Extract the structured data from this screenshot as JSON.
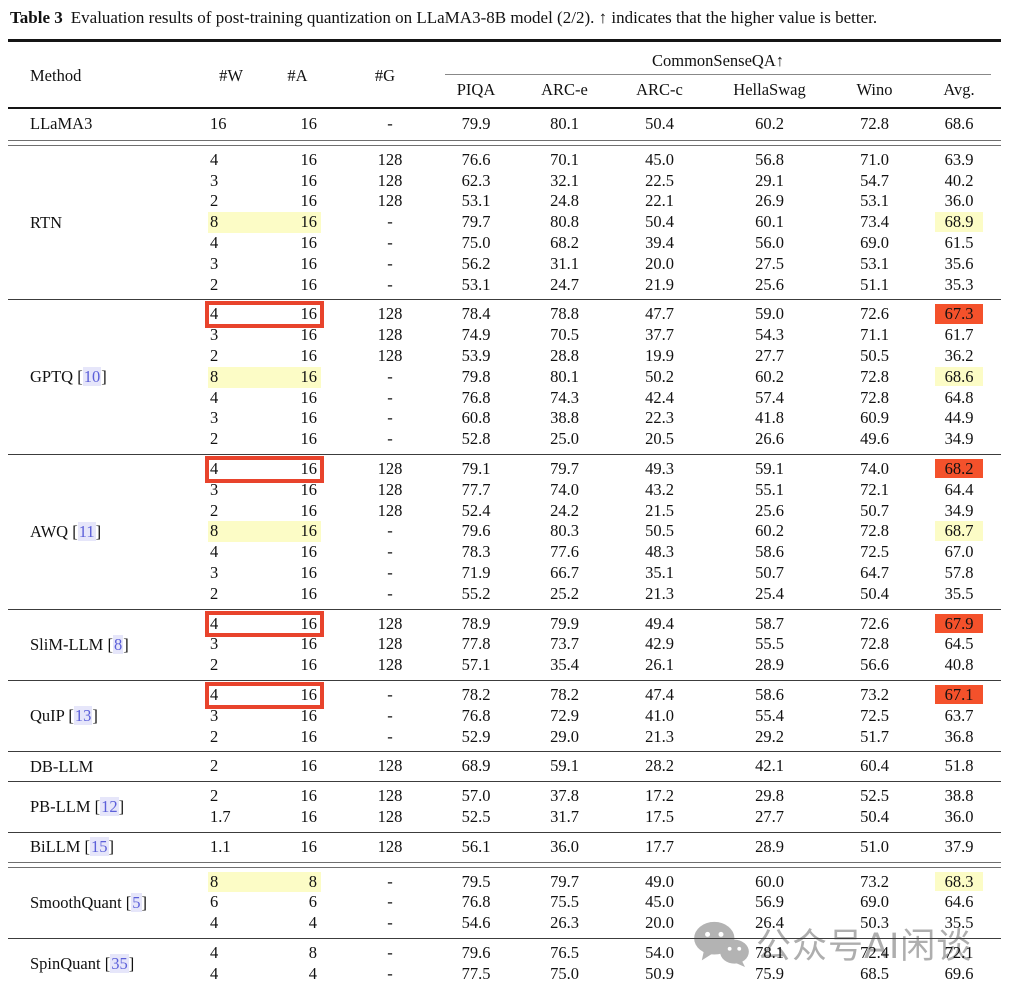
{
  "caption": {
    "label": "Table 3",
    "text": "Evaluation results of post-training quantization on LLaMA3-8B model (2/2). ↑ indicates that the higher value is better."
  },
  "header": {
    "method": "Method",
    "bit_cols": [
      "#W",
      "#A",
      "#G"
    ],
    "group_title": "CommonSenseQA↑",
    "metric_cols": [
      "PIQA",
      "ARC-e",
      "ARC-c",
      "HellaSwag",
      "Wino",
      "Avg."
    ]
  },
  "baseline": {
    "method": "LLaMA3",
    "cite": "",
    "rows": [
      {
        "w": "16",
        "a": "16",
        "g": "-",
        "vals": [
          "79.9",
          "80.1",
          "50.4",
          "60.2",
          "72.8",
          "68.6"
        ],
        "wa": "",
        "avg": ""
      }
    ]
  },
  "groups": [
    {
      "method": "RTN",
      "cite": "",
      "rule_above": "double",
      "rows": [
        {
          "w": "4",
          "a": "16",
          "g": "128",
          "vals": [
            "76.6",
            "70.1",
            "45.0",
            "56.8",
            "71.0",
            "63.9"
          ],
          "wa": "",
          "avg": ""
        },
        {
          "w": "3",
          "a": "16",
          "g": "128",
          "vals": [
            "62.3",
            "32.1",
            "22.5",
            "29.1",
            "54.7",
            "40.2"
          ],
          "wa": "",
          "avg": ""
        },
        {
          "w": "2",
          "a": "16",
          "g": "128",
          "vals": [
            "53.1",
            "24.8",
            "22.1",
            "26.9",
            "53.1",
            "36.0"
          ],
          "wa": "",
          "avg": ""
        },
        {
          "w": "8",
          "a": "16",
          "g": "-",
          "vals": [
            "79.7",
            "80.8",
            "50.4",
            "60.1",
            "73.4",
            "68.9"
          ],
          "wa": "yellow",
          "avg": "yellow"
        },
        {
          "w": "4",
          "a": "16",
          "g": "-",
          "vals": [
            "75.0",
            "68.2",
            "39.4",
            "56.0",
            "69.0",
            "61.5"
          ],
          "wa": "",
          "avg": ""
        },
        {
          "w": "3",
          "a": "16",
          "g": "-",
          "vals": [
            "56.2",
            "31.1",
            "20.0",
            "27.5",
            "53.1",
            "35.6"
          ],
          "wa": "",
          "avg": ""
        },
        {
          "w": "2",
          "a": "16",
          "g": "-",
          "vals": [
            "53.1",
            "24.7",
            "21.9",
            "25.6",
            "51.1",
            "35.3"
          ],
          "wa": "",
          "avg": ""
        }
      ]
    },
    {
      "method": "GPTQ",
      "cite": "10",
      "rule_above": "single",
      "rows": [
        {
          "w": "4",
          "a": "16",
          "g": "128",
          "vals": [
            "78.4",
            "78.8",
            "47.7",
            "59.0",
            "72.6",
            "67.3"
          ],
          "wa": "box",
          "avg": "orange"
        },
        {
          "w": "3",
          "a": "16",
          "g": "128",
          "vals": [
            "74.9",
            "70.5",
            "37.7",
            "54.3",
            "71.1",
            "61.7"
          ],
          "wa": "",
          "avg": ""
        },
        {
          "w": "2",
          "a": "16",
          "g": "128",
          "vals": [
            "53.9",
            "28.8",
            "19.9",
            "27.7",
            "50.5",
            "36.2"
          ],
          "wa": "",
          "avg": ""
        },
        {
          "w": "8",
          "a": "16",
          "g": "-",
          "vals": [
            "79.8",
            "80.1",
            "50.2",
            "60.2",
            "72.8",
            "68.6"
          ],
          "wa": "yellow",
          "avg": "yellow"
        },
        {
          "w": "4",
          "a": "16",
          "g": "-",
          "vals": [
            "76.8",
            "74.3",
            "42.4",
            "57.4",
            "72.8",
            "64.8"
          ],
          "wa": "",
          "avg": ""
        },
        {
          "w": "3",
          "a": "16",
          "g": "-",
          "vals": [
            "60.8",
            "38.8",
            "22.3",
            "41.8",
            "60.9",
            "44.9"
          ],
          "wa": "",
          "avg": ""
        },
        {
          "w": "2",
          "a": "16",
          "g": "-",
          "vals": [
            "52.8",
            "25.0",
            "20.5",
            "26.6",
            "49.6",
            "34.9"
          ],
          "wa": "",
          "avg": ""
        }
      ]
    },
    {
      "method": "AWQ",
      "cite": "11",
      "rule_above": "single",
      "rows": [
        {
          "w": "4",
          "a": "16",
          "g": "128",
          "vals": [
            "79.1",
            "79.7",
            "49.3",
            "59.1",
            "74.0",
            "68.2"
          ],
          "wa": "box",
          "avg": "orange"
        },
        {
          "w": "3",
          "a": "16",
          "g": "128",
          "vals": [
            "77.7",
            "74.0",
            "43.2",
            "55.1",
            "72.1",
            "64.4"
          ],
          "wa": "",
          "avg": ""
        },
        {
          "w": "2",
          "a": "16",
          "g": "128",
          "vals": [
            "52.4",
            "24.2",
            "21.5",
            "25.6",
            "50.7",
            "34.9"
          ],
          "wa": "",
          "avg": ""
        },
        {
          "w": "8",
          "a": "16",
          "g": "-",
          "vals": [
            "79.6",
            "80.3",
            "50.5",
            "60.2",
            "72.8",
            "68.7"
          ],
          "wa": "yellow",
          "avg": "yellow"
        },
        {
          "w": "4",
          "a": "16",
          "g": "-",
          "vals": [
            "78.3",
            "77.6",
            "48.3",
            "58.6",
            "72.5",
            "67.0"
          ],
          "wa": "",
          "avg": ""
        },
        {
          "w": "3",
          "a": "16",
          "g": "-",
          "vals": [
            "71.9",
            "66.7",
            "35.1",
            "50.7",
            "64.7",
            "57.8"
          ],
          "wa": "",
          "avg": ""
        },
        {
          "w": "2",
          "a": "16",
          "g": "-",
          "vals": [
            "55.2",
            "25.2",
            "21.3",
            "25.4",
            "50.4",
            "35.5"
          ],
          "wa": "",
          "avg": ""
        }
      ]
    },
    {
      "method": "SliM-LLM",
      "cite": "8",
      "rule_above": "single",
      "rows": [
        {
          "w": "4",
          "a": "16",
          "g": "128",
          "vals": [
            "78.9",
            "79.9",
            "49.4",
            "58.7",
            "72.6",
            "67.9"
          ],
          "wa": "box",
          "avg": "orange"
        },
        {
          "w": "3",
          "a": "16",
          "g": "128",
          "vals": [
            "77.8",
            "73.7",
            "42.9",
            "55.5",
            "72.8",
            "64.5"
          ],
          "wa": "",
          "avg": ""
        },
        {
          "w": "2",
          "a": "16",
          "g": "128",
          "vals": [
            "57.1",
            "35.4",
            "26.1",
            "28.9",
            "56.6",
            "40.8"
          ],
          "wa": "",
          "avg": ""
        }
      ]
    },
    {
      "method": "QuIP",
      "cite": "13",
      "rule_above": "single",
      "rows": [
        {
          "w": "4",
          "a": "16",
          "g": "-",
          "vals": [
            "78.2",
            "78.2",
            "47.4",
            "58.6",
            "73.2",
            "67.1"
          ],
          "wa": "box",
          "avg": "orange"
        },
        {
          "w": "3",
          "a": "16",
          "g": "-",
          "vals": [
            "76.8",
            "72.9",
            "41.0",
            "55.4",
            "72.5",
            "63.7"
          ],
          "wa": "",
          "avg": ""
        },
        {
          "w": "2",
          "a": "16",
          "g": "-",
          "vals": [
            "52.9",
            "29.0",
            "21.3",
            "29.2",
            "51.7",
            "36.8"
          ],
          "wa": "",
          "avg": ""
        }
      ]
    },
    {
      "method": "DB-LLM",
      "cite": "",
      "rule_above": "single",
      "rows": [
        {
          "w": "2",
          "a": "16",
          "g": "128",
          "vals": [
            "68.9",
            "59.1",
            "28.2",
            "42.1",
            "60.4",
            "51.8"
          ],
          "wa": "",
          "avg": ""
        }
      ]
    },
    {
      "method": "PB-LLM",
      "cite": "12",
      "rule_above": "single",
      "rows": [
        {
          "w": "2",
          "a": "16",
          "g": "128",
          "vals": [
            "57.0",
            "37.8",
            "17.2",
            "29.8",
            "52.5",
            "38.8"
          ],
          "wa": "",
          "avg": ""
        },
        {
          "w": "1.7",
          "a": "16",
          "g": "128",
          "vals": [
            "52.5",
            "31.7",
            "17.5",
            "27.7",
            "50.4",
            "36.0"
          ],
          "wa": "",
          "avg": ""
        }
      ]
    },
    {
      "method": "BiLLM",
      "cite": "15",
      "rule_above": "single",
      "rows": [
        {
          "w": "1.1",
          "a": "16",
          "g": "128",
          "vals": [
            "56.1",
            "36.0",
            "17.7",
            "28.9",
            "51.0",
            "37.9"
          ],
          "wa": "",
          "avg": ""
        }
      ]
    },
    {
      "method": "SmoothQuant",
      "cite": "5",
      "rule_above": "double",
      "rows": [
        {
          "w": "8",
          "a": "8",
          "g": "-",
          "vals": [
            "79.5",
            "79.7",
            "49.0",
            "60.0",
            "73.2",
            "68.3"
          ],
          "wa": "yellow",
          "avg": "yellow"
        },
        {
          "w": "6",
          "a": "6",
          "g": "-",
          "vals": [
            "76.8",
            "75.5",
            "45.0",
            "56.9",
            "69.0",
            "64.6"
          ],
          "wa": "",
          "avg": ""
        },
        {
          "w": "4",
          "a": "4",
          "g": "-",
          "vals": [
            "54.6",
            "26.3",
            "20.0",
            "26.4",
            "50.3",
            "35.5"
          ],
          "wa": "",
          "avg": ""
        }
      ]
    },
    {
      "method": "SpinQuant",
      "cite": "35",
      "rule_above": "single",
      "rows": [
        {
          "w": "4",
          "a": "8",
          "g": "-",
          "vals": [
            "79.6",
            "76.5",
            "54.0",
            "78.1",
            "72.4",
            "72.1"
          ],
          "wa": "",
          "avg": ""
        },
        {
          "w": "4",
          "a": "4",
          "g": "-",
          "vals": [
            "77.5",
            "75.0",
            "50.9",
            "75.9",
            "68.5",
            "69.6"
          ],
          "wa": "",
          "avg": ""
        }
      ]
    }
  ],
  "highlight_colors": {
    "yellow": "#FCFCC6",
    "orange": "#F4512B",
    "box_red": "#E8432C",
    "cite_text": "#5B5FD9",
    "cite_bg": "#E6E6FA"
  },
  "watermark": {
    "icon": "wechat-icon",
    "text_left": "公众号",
    "text_right": "AI闲谈"
  }
}
